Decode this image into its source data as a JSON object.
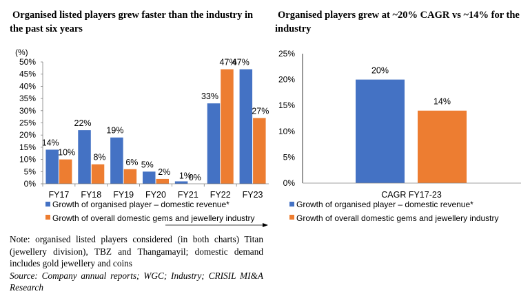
{
  "titles": {
    "left": "Organised listed players grew faster than the industry in the past six years",
    "right": "Organised players grew at ~20% CAGR vs ~14% for the industry"
  },
  "colors": {
    "organised": "#4472C4",
    "industry": "#ED7D31",
    "axis": "#808080",
    "text": "#000000"
  },
  "chart_data": [
    {
      "type": "bar",
      "title": "Organised listed players grew faster than the industry in the past six years",
      "ylabel": "(%)",
      "xlabel": "",
      "categories": [
        "FY17",
        "FY18",
        "FY19",
        "FY20",
        "FY21",
        "FY22",
        "FY23"
      ],
      "series": [
        {
          "name": "Growth of organised player – domestic revenue*",
          "values": [
            14,
            22,
            19,
            5,
            1,
            33,
            47
          ],
          "labels": [
            "14%",
            "22%",
            "19%",
            "5%",
            "1%",
            "33%",
            "47%"
          ]
        },
        {
          "name": "Growth of overall domestic gems and jewellery industry",
          "values": [
            10,
            8,
            6,
            2,
            0,
            47,
            27
          ],
          "labels": [
            "10%",
            "8%",
            "6%",
            "2%",
            "0%",
            "47%",
            "27%"
          ]
        }
      ],
      "ylim": [
        0,
        50
      ],
      "yticks": [
        "0%",
        "5%",
        "10%",
        "15%",
        "20%",
        "25%",
        "30%",
        "35%",
        "40%",
        "45%",
        "50%"
      ],
      "grid": false,
      "legend": "bottom"
    },
    {
      "type": "bar",
      "title": "Organised players grew at ~20% CAGR vs ~14% for the industry",
      "xlabel": "",
      "ylabel": "",
      "categories": [
        "CAGR FY17-23"
      ],
      "series": [
        {
          "name": "Growth of organised player – domestic revenue*",
          "values": [
            20
          ],
          "labels": [
            "20%"
          ]
        },
        {
          "name": "Growth of overall domestic gems and jewellery industry",
          "values": [
            14
          ],
          "labels": [
            "14%"
          ]
        }
      ],
      "ylim": [
        0,
        25
      ],
      "yticks": [
        "0%",
        "5%",
        "10%",
        "15%",
        "20%",
        "25%"
      ],
      "grid": false,
      "legend": "bottom"
    }
  ],
  "note": {
    "text": "Note: organised listed players considered (in both charts) Titan (jewellery division), TBZ and Thangamayil; domestic demand includes gold jewellery and coins",
    "source": "Source: Company annual reports; WGC; Industry; CRISIL MI&A Research"
  }
}
